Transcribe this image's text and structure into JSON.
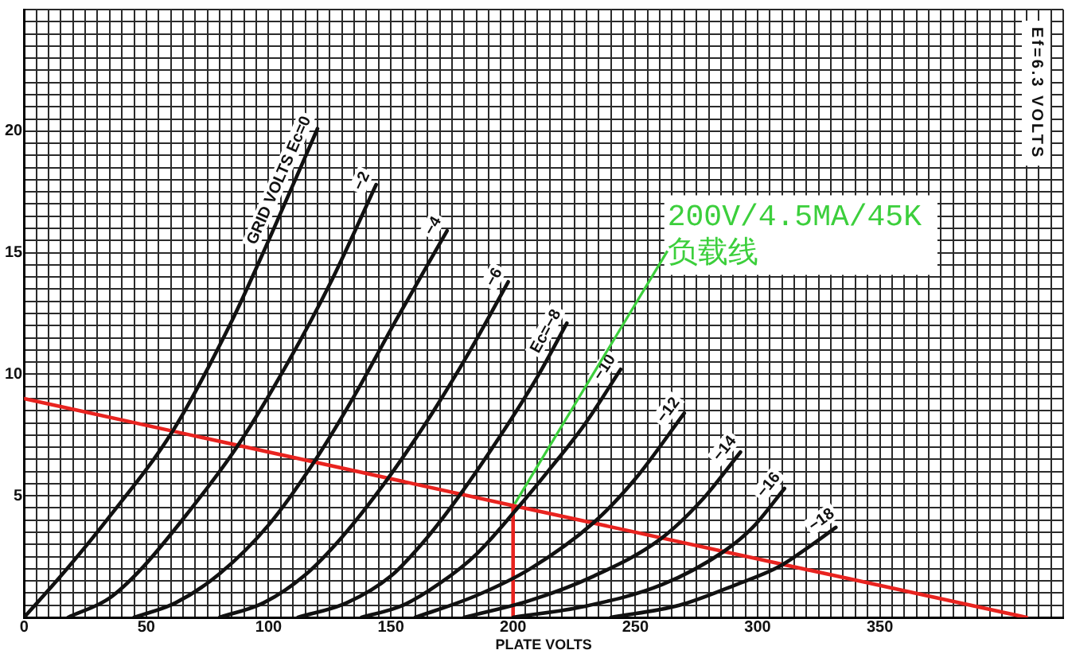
{
  "chart_data": {
    "type": "line",
    "xlabel": "PLATE VOLTS",
    "xlim": [
      0,
      425
    ],
    "ylim": [
      0,
      25
    ],
    "xticks": [
      0,
      {
        "value": 5,
        "label": null
      },
      {
        "value": 10,
        "label": null
      },
      {
        "value": 15,
        "label": null
      },
      {
        "value": 20,
        "label": null
      },
      {
        "value": 25,
        "label": null
      },
      {
        "value": 30,
        "label": null
      },
      {
        "value": 35,
        "label": null
      },
      {
        "value": 40,
        "label": null
      },
      {
        "value": 45,
        "label": null
      },
      50,
      {
        "value": 55,
        "label": null
      },
      {
        "value": 60,
        "label": null
      },
      {
        "value": 65,
        "label": null
      },
      {
        "value": 70,
        "label": null
      },
      {
        "value": 75,
        "label": null
      },
      {
        "value": 80,
        "label": null
      },
      {
        "value": 85,
        "label": null
      },
      {
        "value": 90,
        "label": null
      },
      {
        "value": 95,
        "label": null
      },
      100,
      {
        "value": 105,
        "label": null
      },
      {
        "value": 110,
        "label": null
      },
      {
        "value": 115,
        "label": null
      },
      {
        "value": 120,
        "label": null
      },
      {
        "value": 125,
        "label": null
      },
      {
        "value": 130,
        "label": null
      },
      {
        "value": 135,
        "label": null
      },
      {
        "value": 140,
        "label": null
      },
      {
        "value": 145,
        "label": null
      },
      150,
      {
        "value": 155,
        "label": null
      },
      {
        "value": 160,
        "label": null
      },
      {
        "value": 165,
        "label": null
      },
      {
        "value": 170,
        "label": null
      },
      {
        "value": 175,
        "label": null
      },
      {
        "value": 180,
        "label": null
      },
      {
        "value": 185,
        "label": null
      },
      {
        "value": 190,
        "label": null
      },
      {
        "value": 195,
        "label": null
      },
      200,
      {
        "value": 205,
        "label": null
      },
      {
        "value": 210,
        "label": null
      },
      {
        "value": 215,
        "label": null
      },
      {
        "value": 220,
        "label": null
      },
      {
        "value": 225,
        "label": null
      },
      {
        "value": 230,
        "label": null
      },
      {
        "value": 235,
        "label": null
      },
      {
        "value": 240,
        "label": null
      },
      {
        "value": 245,
        "label": null
      },
      250,
      {
        "value": 255,
        "label": null
      },
      {
        "value": 260,
        "label": null
      },
      {
        "value": 265,
        "label": null
      },
      {
        "value": 270,
        "label": null
      },
      {
        "value": 275,
        "label": null
      },
      {
        "value": 280,
        "label": null
      },
      {
        "value": 285,
        "label": null
      },
      {
        "value": 290,
        "label": null
      },
      {
        "value": 295,
        "label": null
      },
      300,
      {
        "value": 305,
        "label": null
      },
      {
        "value": 310,
        "label": null
      },
      {
        "value": 315,
        "label": null
      },
      {
        "value": 320,
        "label": null
      },
      {
        "value": 325,
        "label": null
      },
      {
        "value": 330,
        "label": null
      },
      {
        "value": 335,
        "label": null
      },
      {
        "value": 340,
        "label": null
      },
      {
        "value": 345,
        "label": null
      },
      350,
      {
        "value": 355,
        "label": null
      },
      {
        "value": 360,
        "label": null
      },
      {
        "value": 365,
        "label": null
      },
      {
        "value": 370,
        "label": null
      },
      {
        "value": 375,
        "label": null
      },
      {
        "value": 380,
        "label": null
      },
      {
        "value": 385,
        "label": null
      },
      {
        "value": 390,
        "label": null
      },
      {
        "value": 395,
        "label": null
      },
      {
        "value": 400,
        "label": null
      },
      {
        "value": 405,
        "label": null
      },
      {
        "value": 410,
        "label": null
      },
      {
        "value": 415,
        "label": null
      },
      {
        "value": 420,
        "label": null
      },
      {
        "value": 425,
        "label": null
      }
    ],
    "yticks": [
      {
        "value": 0,
        "label": null
      },
      {
        "value": 0.5,
        "label": null
      },
      {
        "value": 1,
        "label": null
      },
      {
        "value": 1.5,
        "label": null
      },
      {
        "value": 2,
        "label": null
      },
      {
        "value": 2.5,
        "label": null
      },
      {
        "value": 3,
        "label": null
      },
      {
        "value": 3.5,
        "label": null
      },
      {
        "value": 4,
        "label": null
      },
      {
        "value": 4.5,
        "label": null
      },
      5,
      {
        "value": 5.5,
        "label": null
      },
      {
        "value": 6,
        "label": null
      },
      {
        "value": 6.5,
        "label": null
      },
      {
        "value": 7,
        "label": null
      },
      {
        "value": 7.5,
        "label": null
      },
      {
        "value": 8,
        "label": null
      },
      {
        "value": 8.5,
        "label": null
      },
      {
        "value": 9,
        "label": null
      },
      {
        "value": 9.5,
        "label": null
      },
      10,
      {
        "value": 10.5,
        "label": null
      },
      {
        "value": 11,
        "label": null
      },
      {
        "value": 11.5,
        "label": null
      },
      {
        "value": 12,
        "label": null
      },
      {
        "value": 12.5,
        "label": null
      },
      {
        "value": 13,
        "label": null
      },
      {
        "value": 13.5,
        "label": null
      },
      {
        "value": 14,
        "label": null
      },
      {
        "value": 14.5,
        "label": null
      },
      15,
      {
        "value": 15.5,
        "label": null
      },
      {
        "value": 16,
        "label": null
      },
      {
        "value": 16.5,
        "label": null
      },
      {
        "value": 17,
        "label": null
      },
      {
        "value": 17.5,
        "label": null
      },
      {
        "value": 18,
        "label": null
      },
      {
        "value": 18.5,
        "label": null
      },
      {
        "value": 19,
        "label": null
      },
      {
        "value": 19.5,
        "label": null
      },
      20,
      {
        "value": 20.5,
        "label": null
      },
      {
        "value": 21,
        "label": null
      },
      {
        "value": 21.5,
        "label": null
      },
      {
        "value": 22,
        "label": null
      },
      {
        "value": 22.5,
        "label": null
      },
      {
        "value": 23,
        "label": null
      },
      {
        "value": 23.5,
        "label": null
      },
      {
        "value": 24,
        "label": null
      },
      {
        "value": 24.5,
        "label": null
      },
      {
        "value": 25,
        "label": null
      }
    ],
    "grid": true,
    "legend": false,
    "marker": "none",
    "line_style": "solid",
    "series": [
      {
        "name": "GRID VOLTS Ec=0",
        "color": "#111111",
        "x": [
          0,
          15,
          33,
          61,
          85,
          100,
          120
        ],
        "values": [
          0,
          1.7,
          3.9,
          7.7,
          12.2,
          15.5,
          20.1
        ]
      },
      {
        "name": "−2",
        "color": "#111111",
        "x": [
          18,
          35,
          48,
          67,
          87,
          108,
          126,
          144
        ],
        "values": [
          0,
          0.8,
          2.0,
          4.3,
          7.0,
          10.5,
          13.9,
          17.8
        ]
      },
      {
        "name": "−4",
        "color": "#111111",
        "x": [
          45,
          62,
          80,
          100,
          118,
          135,
          152,
          173
        ],
        "values": [
          0,
          0.6,
          1.8,
          3.8,
          6.3,
          9.1,
          12.2,
          15.9
        ]
      },
      {
        "name": "−6",
        "color": "#111111",
        "x": [
          80,
          98,
          115,
          130,
          148,
          165,
          182,
          198
        ],
        "values": [
          0,
          0.6,
          1.75,
          3.3,
          5.6,
          8.1,
          10.9,
          13.8
        ]
      },
      {
        "name": "Ec=−8",
        "color": "#111111",
        "x": [
          112,
          132,
          150,
          165,
          178,
          195,
          210,
          222
        ],
        "values": [
          0,
          0.6,
          1.7,
          3.3,
          5.0,
          7.5,
          9.9,
          12.1
        ]
      },
      {
        "name": "−10",
        "color": "#111111",
        "x": [
          138,
          155,
          170,
          185,
          201,
          215,
          229,
          244
        ],
        "values": [
          0,
          0.5,
          1.4,
          2.6,
          4.4,
          6.1,
          7.9,
          10.2
        ]
      },
      {
        "name": "−12",
        "color": "#111111",
        "x": [
          160,
          185,
          207,
          233,
          250,
          270
        ],
        "values": [
          0,
          0.9,
          2.0,
          3.9,
          5.7,
          8.4
        ]
      },
      {
        "name": "−14",
        "color": "#111111",
        "x": [
          180,
          207,
          233,
          260,
          277,
          293
        ],
        "values": [
          0,
          0.7,
          1.7,
          3.2,
          4.8,
          6.8
        ]
      },
      {
        "name": "−16",
        "color": "#111111",
        "x": [
          200,
          229,
          261,
          286,
          298,
          311
        ],
        "values": [
          0,
          0.45,
          1.35,
          2.7,
          3.7,
          5.3
        ]
      },
      {
        "name": "−18",
        "color": "#111111",
        "x": [
          240,
          268,
          290,
          309,
          321,
          332
        ],
        "values": [
          0,
          0.5,
          1.3,
          2.1,
          2.9,
          3.7
        ]
      },
      {
        "type": "line",
        "color": "#e8231f",
        "x": [
          0,
          200,
          410
        ],
        "values": [
          9.0,
          4.6,
          0
        ]
      },
      {
        "type": "line",
        "color": "#e8231f",
        "x": [
          200,
          200
        ],
        "values": [
          0,
          4.6
        ]
      }
    ],
    "annotations": [
      "Ef=6.3 VOLTS",
      {
        "text": "200V/4.5MA/45K\n负载线",
        "x": 200,
        "y": 4.6
      }
    ]
  }
}
